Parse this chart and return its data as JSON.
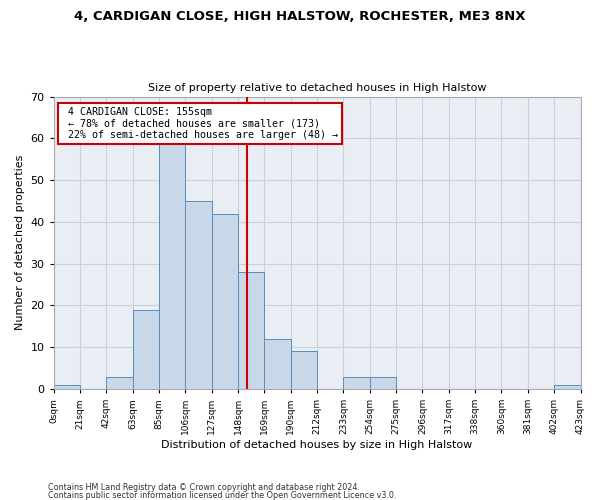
{
  "title": "4, CARDIGAN CLOSE, HIGH HALSTOW, ROCHESTER, ME3 8NX",
  "subtitle": "Size of property relative to detached houses in High Halstow",
  "xlabel": "Distribution of detached houses by size in High Halstow",
  "ylabel": "Number of detached properties",
  "footnote1": "Contains HM Land Registry data © Crown copyright and database right 2024.",
  "footnote2": "Contains public sector information licensed under the Open Government Licence v3.0.",
  "bin_labels": [
    "0sqm",
    "21sqm",
    "42sqm",
    "63sqm",
    "85sqm",
    "106sqm",
    "127sqm",
    "148sqm",
    "169sqm",
    "190sqm",
    "212sqm",
    "233sqm",
    "254sqm",
    "275sqm",
    "296sqm",
    "317sqm",
    "338sqm",
    "360sqm",
    "381sqm",
    "402sqm",
    "423sqm"
  ],
  "bar_values": [
    1,
    0,
    3,
    19,
    59,
    45,
    42,
    28,
    12,
    9,
    0,
    3,
    3,
    0,
    0,
    0,
    0,
    0,
    0,
    1
  ],
  "bar_color": "#c8d8e8",
  "bar_edge_color": "#5b8db8",
  "ylim": [
    0,
    70
  ],
  "yticks": [
    0,
    10,
    20,
    30,
    40,
    50,
    60,
    70
  ],
  "property_label": "4 CARDIGAN CLOSE: 155sqm",
  "pct_smaller": "← 78% of detached houses are smaller (173)",
  "pct_larger": "22% of semi-detached houses are larger (48) →",
  "vline_color": "#cc0000",
  "grid_color": "#c8d0da",
  "bg_color": "#e8eef4"
}
